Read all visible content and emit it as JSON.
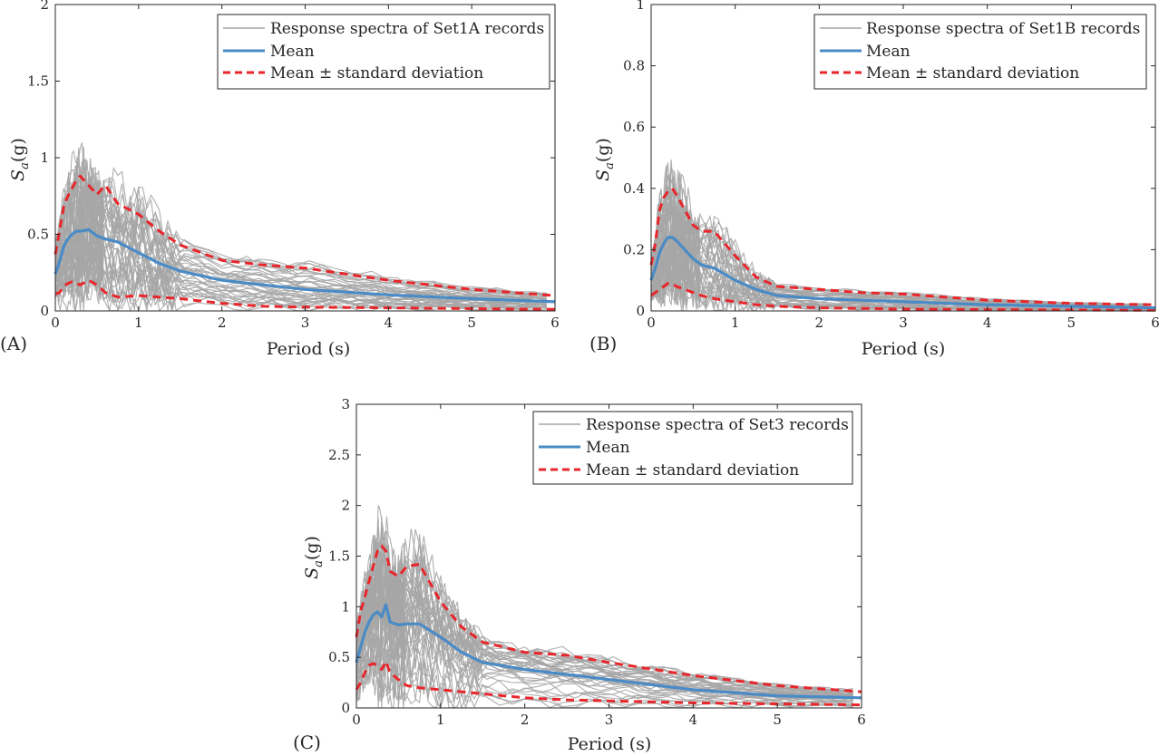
{
  "colors": {
    "records": "#a6a6a6",
    "mean": "#4a8bc6",
    "std": "#e8262b",
    "axis": "#262626"
  },
  "chart_data": [
    {
      "panel_label": "(A)",
      "type": "line",
      "xlabel": "Period (s)",
      "ylabel": "Sa(g)",
      "xlim": [
        0,
        6
      ],
      "ylim": [
        0,
        2
      ],
      "xticks": [
        0,
        1,
        2,
        3,
        4,
        5,
        6
      ],
      "yticks": [
        0,
        0.5,
        1,
        1.5,
        2
      ],
      "xtick_labels": [
        "0",
        "1",
        "2",
        "3",
        "4",
        "5",
        "6"
      ],
      "ytick_labels": [
        "0",
        "0.5",
        "1",
        "1.5",
        "2"
      ],
      "grid": false,
      "legend_position": "top-right",
      "legend": [
        "Response spectra of Set1A records",
        "Mean",
        "Mean ± standard deviation"
      ],
      "record_count": 40,
      "periods": [
        0,
        0.05,
        0.1,
        0.15,
        0.2,
        0.25,
        0.3,
        0.4,
        0.5,
        0.6,
        0.75,
        1.0,
        1.25,
        1.5,
        2.0,
        2.5,
        3.0,
        4.0,
        5.0,
        6.0
      ],
      "series": [
        {
          "name": "Mean",
          "values": [
            0.24,
            0.32,
            0.42,
            0.47,
            0.5,
            0.52,
            0.52,
            0.53,
            0.49,
            0.47,
            0.45,
            0.38,
            0.31,
            0.26,
            0.2,
            0.17,
            0.14,
            0.105,
            0.08,
            0.06
          ]
        },
        {
          "name": "Mean + standard deviation",
          "values": [
            0.37,
            0.52,
            0.68,
            0.75,
            0.8,
            0.85,
            0.88,
            0.82,
            0.76,
            0.82,
            0.7,
            0.63,
            0.52,
            0.43,
            0.33,
            0.3,
            0.28,
            0.2,
            0.14,
            0.1
          ]
        },
        {
          "name": "Mean - standard deviation",
          "values": [
            0.11,
            0.12,
            0.16,
            0.18,
            0.19,
            0.18,
            0.17,
            0.2,
            0.17,
            0.12,
            0.09,
            0.1,
            0.09,
            0.08,
            0.05,
            0.03,
            0.025,
            0.02,
            0.015,
            0.01
          ]
        }
      ]
    },
    {
      "panel_label": "(B)",
      "type": "line",
      "xlabel": "Period (s)",
      "ylabel": "Sa(g)",
      "xlim": [
        0,
        6
      ],
      "ylim": [
        0,
        1
      ],
      "xticks": [
        0,
        1,
        2,
        3,
        4,
        5,
        6
      ],
      "yticks": [
        0,
        0.2,
        0.4,
        0.6,
        0.8,
        1
      ],
      "xtick_labels": [
        "0",
        "1",
        "2",
        "3",
        "4",
        "5",
        "6"
      ],
      "ytick_labels": [
        "0",
        "0.2",
        "0.4",
        "0.6",
        "0.8",
        "1"
      ],
      "grid": false,
      "legend_position": "top-right",
      "legend": [
        "Response spectra of Set1B records",
        "Mean",
        "Mean ± standard deviation"
      ],
      "record_count": 40,
      "periods": [
        0,
        0.05,
        0.1,
        0.15,
        0.2,
        0.25,
        0.3,
        0.4,
        0.5,
        0.6,
        0.75,
        1.0,
        1.25,
        1.5,
        2.0,
        2.5,
        3.0,
        4.0,
        5.0,
        6.0
      ],
      "series": [
        {
          "name": "Mean",
          "values": [
            0.1,
            0.14,
            0.19,
            0.22,
            0.24,
            0.24,
            0.23,
            0.2,
            0.17,
            0.15,
            0.14,
            0.1,
            0.07,
            0.05,
            0.04,
            0.035,
            0.03,
            0.02,
            0.015,
            0.01
          ]
        },
        {
          "name": "Mean + standard deviation",
          "values": [
            0.15,
            0.22,
            0.33,
            0.37,
            0.39,
            0.4,
            0.38,
            0.33,
            0.28,
            0.26,
            0.26,
            0.18,
            0.11,
            0.08,
            0.07,
            0.06,
            0.055,
            0.035,
            0.025,
            0.02
          ]
        },
        {
          "name": "Mean - standard deviation",
          "values": [
            0.05,
            0.06,
            0.07,
            0.08,
            0.09,
            0.09,
            0.08,
            0.07,
            0.06,
            0.05,
            0.04,
            0.03,
            0.02,
            0.015,
            0.01,
            0.008,
            0.006,
            0.004,
            0.003,
            0.002
          ]
        }
      ]
    },
    {
      "panel_label": "(C)",
      "type": "line",
      "xlabel": "Period (s)",
      "ylabel": "Sa(g)",
      "xlim": [
        0,
        6
      ],
      "ylim": [
        0,
        3
      ],
      "xticks": [
        0,
        1,
        2,
        3,
        4,
        5,
        6
      ],
      "yticks": [
        0,
        0.5,
        1,
        1.5,
        2,
        2.5,
        3
      ],
      "xtick_labels": [
        "0",
        "1",
        "2",
        "3",
        "4",
        "5",
        "6"
      ],
      "ytick_labels": [
        "0",
        "0.5",
        "1",
        "1.5",
        "2",
        "2.5",
        "3"
      ],
      "grid": false,
      "legend_position": "top-right",
      "legend": [
        "Response spectra of Set3 records",
        "Mean",
        "Mean ± standard deviation"
      ],
      "record_count": 40,
      "periods": [
        0,
        0.05,
        0.1,
        0.15,
        0.2,
        0.25,
        0.3,
        0.35,
        0.4,
        0.5,
        0.6,
        0.75,
        1.0,
        1.25,
        1.5,
        2.0,
        2.5,
        3.0,
        4.0,
        5.0,
        6.0
      ],
      "series": [
        {
          "name": "Mean",
          "values": [
            0.45,
            0.6,
            0.75,
            0.85,
            0.92,
            0.95,
            0.9,
            1.02,
            0.85,
            0.82,
            0.83,
            0.83,
            0.7,
            0.55,
            0.45,
            0.38,
            0.33,
            0.28,
            0.18,
            0.12,
            0.1
          ]
        },
        {
          "name": "Mean + standard deviation",
          "values": [
            0.7,
            0.95,
            1.1,
            1.25,
            1.4,
            1.55,
            1.6,
            1.55,
            1.35,
            1.3,
            1.4,
            1.42,
            1.05,
            0.8,
            0.65,
            0.55,
            0.52,
            0.45,
            0.32,
            0.22,
            0.16
          ]
        },
        {
          "name": "Mean - standard deviation",
          "values": [
            0.18,
            0.25,
            0.35,
            0.42,
            0.44,
            0.42,
            0.38,
            0.46,
            0.35,
            0.28,
            0.22,
            0.2,
            0.18,
            0.16,
            0.14,
            0.1,
            0.08,
            0.07,
            0.05,
            0.04,
            0.03
          ]
        }
      ]
    }
  ]
}
